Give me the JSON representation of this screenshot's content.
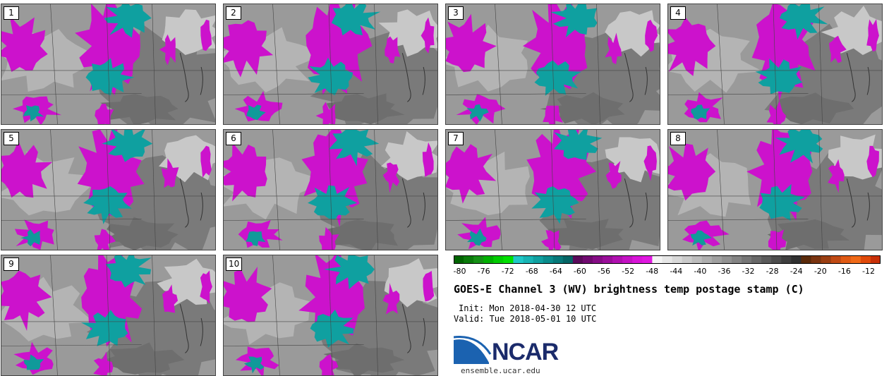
{
  "panels": [
    {
      "label": "1"
    },
    {
      "label": "2"
    },
    {
      "label": "3"
    },
    {
      "label": "4"
    },
    {
      "label": "5"
    },
    {
      "label": "6"
    },
    {
      "label": "7"
    },
    {
      "label": "8"
    },
    {
      "label": "9"
    },
    {
      "label": "10"
    }
  ],
  "colorbar": {
    "ticks": [
      "-80",
      "-76",
      "-72",
      "-68",
      "-64",
      "-60",
      "-56",
      "-52",
      "-48",
      "-44",
      "-40",
      "-36",
      "-32",
      "-28",
      "-24",
      "-20",
      "-16",
      "-12"
    ],
    "range": [
      -81,
      -10
    ],
    "colors": [
      "#006400",
      "#0a7a0a",
      "#159015",
      "#00b000",
      "#00cc00",
      "#00e000",
      "#20c8c8",
      "#18b4b4",
      "#10a0a0",
      "#0a8c8c",
      "#067878",
      "#046464",
      "#5a0a5a",
      "#700a70",
      "#860c86",
      "#9a0e9a",
      "#b010b0",
      "#c412c4",
      "#d814d8",
      "#e018e0",
      "#f4f4f4",
      "#e6e6e6",
      "#d8d8d8",
      "#cacaca",
      "#bcbcbc",
      "#aeaeae",
      "#a0a0a0",
      "#929292",
      "#848484",
      "#767676",
      "#686868",
      "#5a5a5a",
      "#4c4c4c",
      "#3e3e3e",
      "#303030",
      "#5a2a0a",
      "#7a3410",
      "#9a3e12",
      "#c04a14",
      "#e05a14",
      "#f06a18",
      "#e04a0a",
      "#c83008"
    ]
  },
  "title": "GOES-E Channel 3 (WV) brightness temp postage stamp (C)",
  "init": "Init: Mon 2018-04-30 12 UTC",
  "valid": "Valid: Tue 2018-05-01 10 UTC",
  "logo": {
    "name": "NCAR",
    "url": "ensemble.ucar.edu"
  }
}
